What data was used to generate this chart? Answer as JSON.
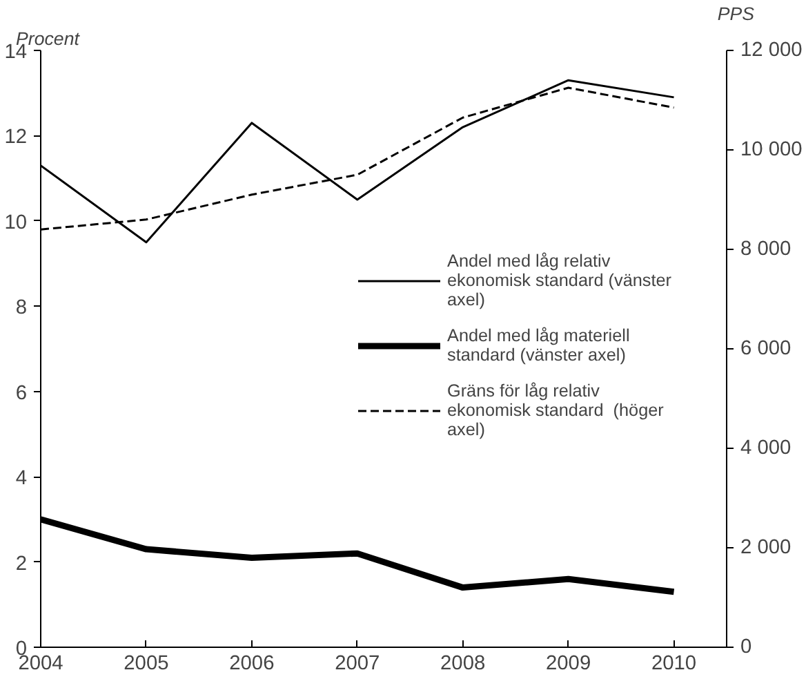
{
  "chart_data": {
    "type": "line",
    "xlabel": null,
    "ylabel": "Procent",
    "y2label": "PPS",
    "x": [
      2004,
      2005,
      2006,
      2007,
      2008,
      2009,
      2010
    ],
    "series": [
      {
        "name": "Andel med låg relativ ekonomisk standard (vänster axel)",
        "color": "#000000",
        "values": [
          11.3,
          9.5,
          12.3,
          10.5,
          12.2,
          13.3,
          12.9
        ],
        "line_style": "solid"
      },
      {
        "name": "Andel med låg materiell standard (vänster axel)",
        "color": "#000000",
        "values": [
          3.0,
          2.3,
          2.1,
          2.2,
          1.4,
          1.6,
          1.3
        ],
        "line_style": "solid"
      },
      {
        "name": "Gräns för låg relativ ekonomisk standard  (höger axel)",
        "color": "#000000",
        "values": [
          8400,
          8600,
          9100,
          9500,
          10650,
          11250,
          10850
        ],
        "line_style": "dashed",
        "axis": "y2"
      }
    ],
    "xlim": [
      2004,
      2010.5
    ],
    "xticks": [
      2004,
      2005,
      2006,
      2007,
      2008,
      2009,
      2010
    ],
    "ylim": [
      0,
      14
    ],
    "yticks": [
      0,
      2,
      4,
      6,
      8,
      10,
      12,
      14
    ],
    "y2lim": [
      0,
      12000
    ],
    "y2ticks": [
      0,
      {
        "value": 2000,
        "label": "2 000"
      },
      {
        "value": 4000,
        "label": "4 000"
      },
      {
        "value": 6000,
        "label": "6 000"
      },
      {
        "value": 8000,
        "label": "8 000"
      },
      {
        "value": 10000,
        "label": "10 000"
      },
      {
        "value": 12000,
        "label": "12 000"
      }
    ],
    "grid": false,
    "legend": "right",
    "marker": "none"
  }
}
